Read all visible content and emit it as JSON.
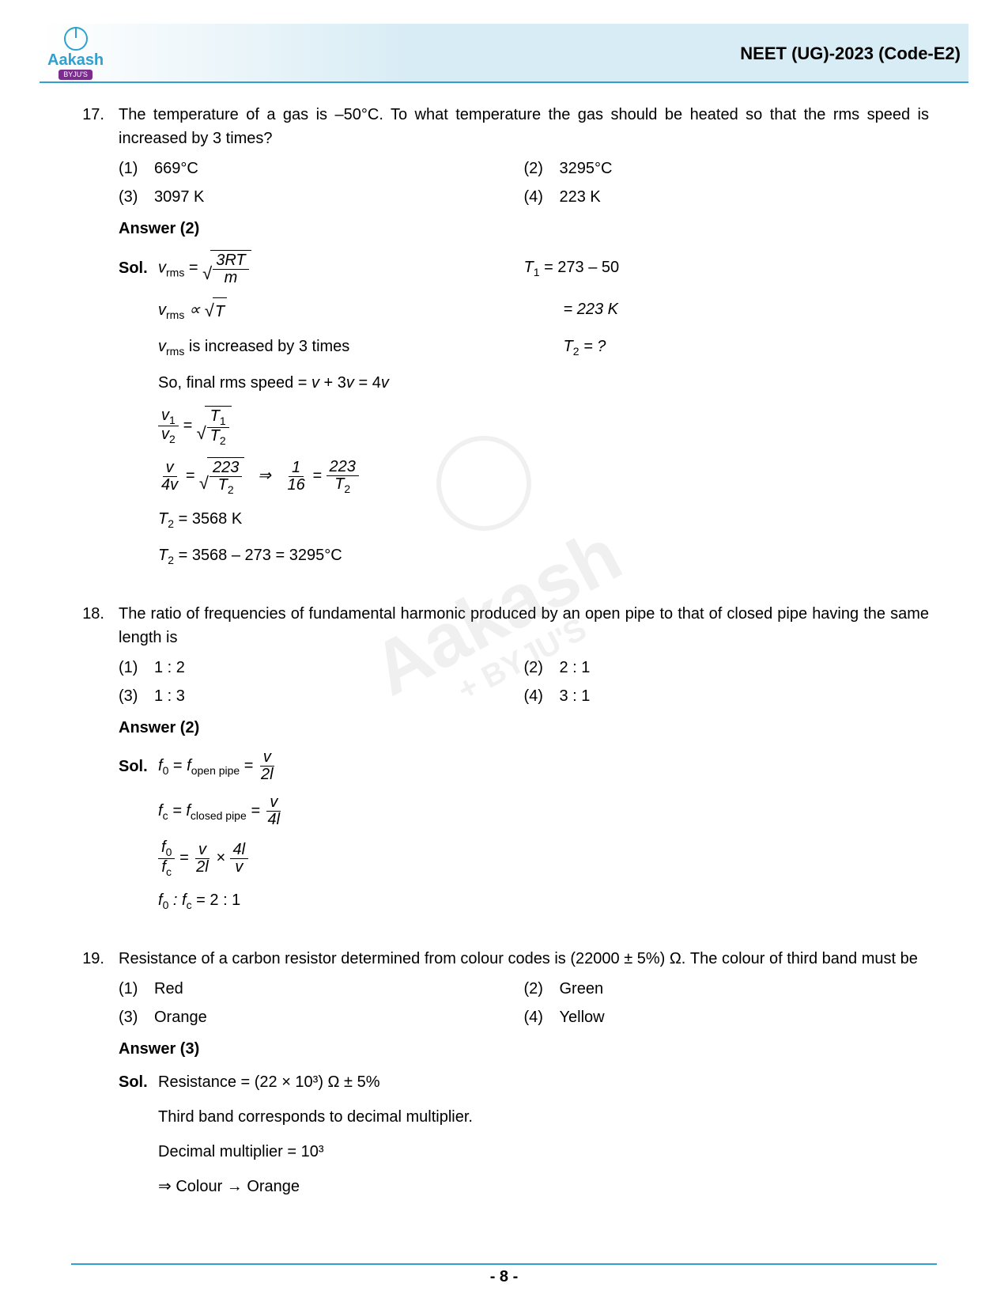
{
  "header": {
    "logo_name": "Aakash",
    "logo_sub": "BYJU'S",
    "title": "NEET (UG)-2023 (Code-E2)"
  },
  "questions": [
    {
      "num": "17.",
      "text": "The temperature of a gas is –50°C. To what temperature the gas should be heated so that the rms speed is increased by 3 times?",
      "options": [
        {
          "n": "(1)",
          "t": "669°C"
        },
        {
          "n": "(2)",
          "t": "3295°C"
        },
        {
          "n": "(3)",
          "t": "3097 K"
        },
        {
          "n": "(4)",
          "t": "223 K"
        }
      ],
      "answer": "Answer (2)",
      "sol": {
        "line1_left_prefix": "v",
        "line1_left_sub": "rms",
        "line1_frac_num": "3RT",
        "line1_frac_den": "m",
        "line1_right": "T₁ = 273 – 50",
        "line2_left_prefix": "v",
        "line2_left_sub": "rms",
        "line2_left_rest": " ∝ √T",
        "line2_right": "= 223 K",
        "line3_left": "vrms is increased by 3 times",
        "line3_right": "T₂ = ?",
        "line4": "So, final rms speed = v + 3v = 4v",
        "line5_f1n": "v₁",
        "line5_f1d": "v₂",
        "line5_f2n": "T₁",
        "line5_f2d": "T₂",
        "line6_f1n": "v",
        "line6_f1d": "4v",
        "line6_f2n": "223",
        "line6_f2d": "T₂",
        "line6_f3n": "1",
        "line6_f3d": "16",
        "line6_f4n": "223",
        "line6_f4d": "T₂",
        "line7": "T₂ = 3568 K",
        "line8": "T₂ = 3568 – 273 = 3295°C"
      }
    },
    {
      "num": "18.",
      "text": "The ratio of frequencies of fundamental harmonic produced by an open pipe to that of closed pipe having the same length is",
      "options": [
        {
          "n": "(1)",
          "t": "1 : 2"
        },
        {
          "n": "(2)",
          "t": "2 : 1"
        },
        {
          "n": "(3)",
          "t": "1 : 3"
        },
        {
          "n": "(4)",
          "t": "3 : 1"
        }
      ],
      "answer": "Answer (2)",
      "sol": {
        "l1_a": "f₀ = f",
        "l1_sub": "open pipe",
        "l1_fn": "v",
        "l1_fd": "2l",
        "l2_a": "f",
        "l2_sub1": "c",
        "l2_b": " = f",
        "l2_sub2": "closed pipe",
        "l2_fn": "v",
        "l2_fd": "4l",
        "l3_f1n": "f₀",
        "l3_f1d": "fc",
        "l3_f2n": "v",
        "l3_f2d": "2l",
        "l3_f3n": "4l",
        "l3_f3d": "v",
        "l4": "f₀ : fc = 2 : 1"
      }
    },
    {
      "num": "19.",
      "text": "Resistance of a carbon resistor determined from colour codes is (22000 ± 5%) Ω. The colour of third band must be",
      "options": [
        {
          "n": "(1)",
          "t": "Red"
        },
        {
          "n": "(2)",
          "t": "Green"
        },
        {
          "n": "(3)",
          "t": "Orange"
        },
        {
          "n": "(4)",
          "t": "Yellow"
        }
      ],
      "answer": "Answer (3)",
      "sol": {
        "l1": "Resistance = (22 × 10³) Ω ± 5%",
        "l2": "Third band corresponds to decimal multiplier.",
        "l3": "Decimal multiplier = 10³",
        "l4": "⇒    Colour → Orange"
      }
    }
  ],
  "footer": "- 8 -",
  "colors": {
    "accent": "#2fa0d0",
    "logo_purple": "#7b2d8e",
    "text": "#000000",
    "header_grad": "#d8ecf5"
  }
}
